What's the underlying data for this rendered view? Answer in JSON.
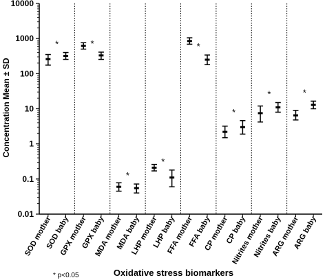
{
  "chart_data": {
    "type": "scatter",
    "subtype": "mean-sd error bars",
    "xlabel": "Oxidative stress biomarkers",
    "ylabel": "Concentration  Mean ± SD",
    "yscale": "log",
    "ylim": [
      0.01,
      10000
    ],
    "y_ticks": [
      "0.01",
      "0.1",
      "1",
      "10",
      "100",
      "1000",
      "10000"
    ],
    "categories": [
      "SOD mother",
      "SOD baby",
      "GPX mother",
      "GPX baby",
      "MDA mother",
      "MDA baby",
      "LHP mother",
      "LHP baby",
      "FFA mother",
      "FFA baby",
      "CP mother",
      "CP baby",
      "Nitrites mother",
      "Nitrites baby",
      "ARG mother",
      "ARG baby"
    ],
    "mean": [
      260,
      320,
      620,
      330,
      0.06,
      0.055,
      0.21,
      0.11,
      850,
      250,
      2.2,
      3.0,
      7.5,
      11,
      6.5,
      13
    ],
    "lower": [
      175,
      255,
      500,
      255,
      0.045,
      0.04,
      0.17,
      0.06,
      690,
      180,
      1.5,
      1.9,
      4.2,
      8,
      4.8,
      10
    ],
    "upper": [
      350,
      400,
      760,
      410,
      0.078,
      0.072,
      0.26,
      0.18,
      1050,
      340,
      3.2,
      4.6,
      12,
      15,
      9,
      16.5
    ],
    "significance_marker": "*",
    "significant": [
      false,
      true,
      false,
      true,
      false,
      true,
      false,
      true,
      false,
      true,
      false,
      true,
      false,
      true,
      false,
      true
    ],
    "groups": 8,
    "grid": false,
    "footnote": "* p<0.05"
  }
}
